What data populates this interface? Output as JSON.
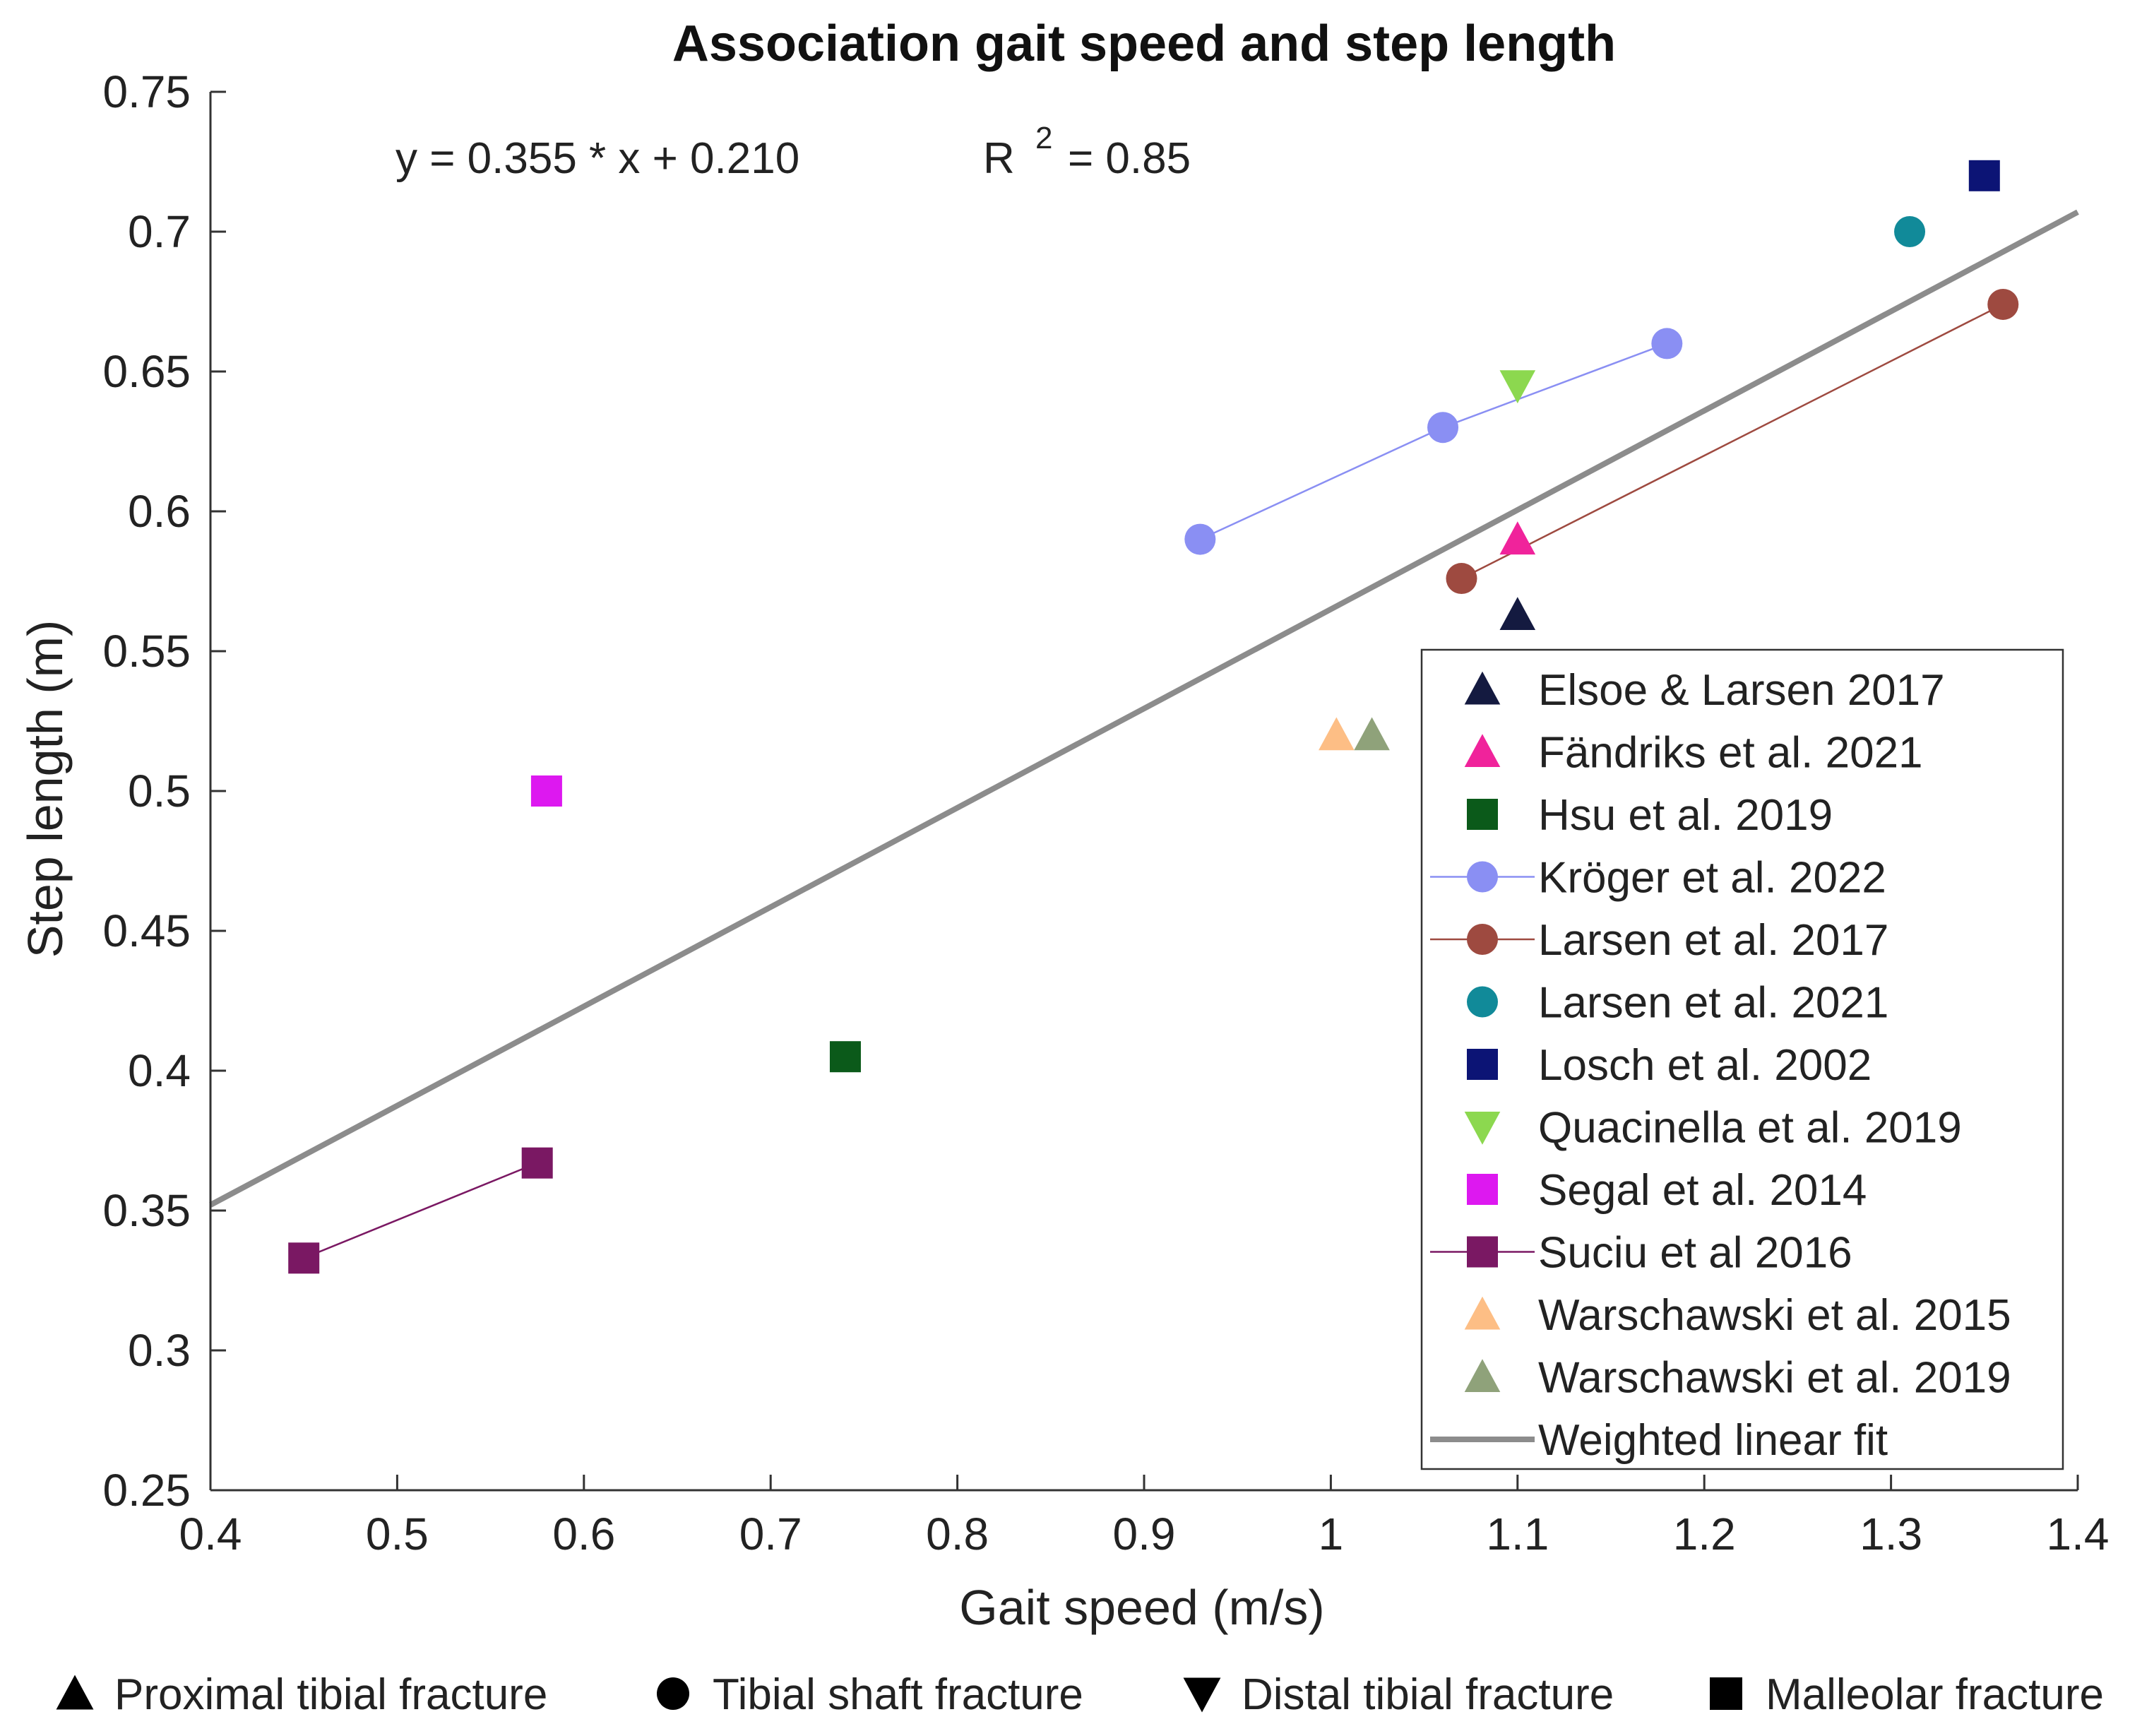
{
  "chart_data": {
    "type": "scatter",
    "title": "Association gait speed and step length",
    "xlabel": "Gait speed (m/s)",
    "ylabel": "Step length (m)",
    "xlim": [
      0.4,
      1.4
    ],
    "ylim": [
      0.25,
      0.75
    ],
    "xticks": [
      0.4,
      0.5,
      0.6,
      0.7,
      0.8,
      0.9,
      1,
      1.1,
      1.2,
      1.3,
      1.4
    ],
    "xtick_labels": [
      "0.4",
      "0.5",
      "0.6",
      "0.7",
      "0.8",
      "0.9",
      "1",
      "1.1",
      "1.2",
      "1.3",
      "1.4"
    ],
    "yticks": [
      0.25,
      0.3,
      0.35,
      0.4,
      0.45,
      0.5,
      0.55,
      0.6,
      0.65,
      0.7,
      0.75
    ],
    "ytick_labels": [
      "0.25",
      "0.3",
      "0.35",
      "0.4",
      "0.45",
      "0.5",
      "0.55",
      "0.6",
      "0.65",
      "0.7",
      "0.75"
    ],
    "grid": false,
    "legend_position": "bottom-right",
    "annotation": {
      "equation": "y = 0.355 * x + 0.210",
      "r_prefix": "R",
      "r_exponent": "2",
      "r_suffix": "= 0.85"
    },
    "series": [
      {
        "name": "Elsoe & Larsen 2017",
        "marker": "triangle-up",
        "color": "#141A40",
        "connected": false,
        "points": [
          [
            1.1,
            0.563
          ]
        ]
      },
      {
        "name": "Fändriks et al. 2021",
        "marker": "triangle-up",
        "color": "#F0239B",
        "connected": false,
        "points": [
          [
            1.1,
            0.59
          ]
        ]
      },
      {
        "name": "Hsu et al. 2019",
        "marker": "square",
        "color": "#0B5A1A",
        "connected": false,
        "points": [
          [
            0.74,
            0.405
          ]
        ]
      },
      {
        "name": "Kröger et al. 2022",
        "marker": "circle",
        "color": "#8A8FF3",
        "connected": true,
        "points": [
          [
            0.93,
            0.59
          ],
          [
            1.06,
            0.63
          ],
          [
            1.18,
            0.66
          ]
        ]
      },
      {
        "name": "Larsen et al. 2017",
        "marker": "circle",
        "color": "#9E4A40",
        "connected": true,
        "points": [
          [
            1.07,
            0.576
          ],
          [
            1.36,
            0.674
          ]
        ]
      },
      {
        "name": "Larsen et al. 2021",
        "marker": "circle",
        "color": "#118A99",
        "connected": false,
        "points": [
          [
            1.31,
            0.7
          ]
        ]
      },
      {
        "name": "Losch et al. 2002",
        "marker": "square",
        "color": "#0C1475",
        "connected": false,
        "points": [
          [
            1.35,
            0.72
          ]
        ]
      },
      {
        "name": "Quacinella et al. 2019",
        "marker": "triangle-down",
        "color": "#8CD84F",
        "connected": false,
        "points": [
          [
            1.1,
            0.645
          ]
        ]
      },
      {
        "name": "Segal et al. 2014",
        "marker": "square",
        "color": "#DD18F0",
        "connected": false,
        "points": [
          [
            0.58,
            0.5
          ]
        ]
      },
      {
        "name": "Suciu et al 2016",
        "marker": "square",
        "color": "#7A1863",
        "connected": true,
        "points": [
          [
            0.45,
            0.333
          ],
          [
            0.575,
            0.367
          ]
        ]
      },
      {
        "name": "Warschawski et al. 2015",
        "marker": "triangle-up",
        "color": "#FDBE85",
        "connected": false,
        "points": [
          [
            1.003,
            0.52
          ]
        ]
      },
      {
        "name": "Warschawski et al. 2019",
        "marker": "triangle-up",
        "color": "#8FA27A",
        "connected": false,
        "points": [
          [
            1.022,
            0.52
          ]
        ]
      }
    ],
    "fit": {
      "name": "Weighted linear fit",
      "slope": 0.355,
      "intercept": 0.21,
      "color": "#8C8C8C",
      "x_range": [
        0.4,
        1.4
      ]
    },
    "fracture_types": [
      {
        "marker": "triangle-up",
        "label": "Proximal tibial fracture"
      },
      {
        "marker": "circle",
        "label": "Tibial shaft fracture"
      },
      {
        "marker": "triangle-down",
        "label": "Distal tibial fracture"
      },
      {
        "marker": "square",
        "label": "Malleolar fracture"
      }
    ]
  }
}
